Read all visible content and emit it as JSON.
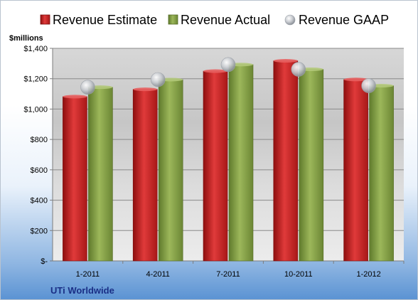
{
  "chart_data": {
    "type": "bar",
    "title": "",
    "unit_label": "$millions",
    "company": "UTi Worldwide",
    "categories": [
      "1-2011",
      "4-2011",
      "7-2011",
      "10-2011",
      "1-2012"
    ],
    "series": [
      {
        "name": "Revenue Estimate",
        "type": "bar",
        "color": "#d42a2a",
        "values": [
          1082,
          1130,
          1250,
          1318,
          1195
        ]
      },
      {
        "name": "Revenue Actual",
        "type": "bar",
        "color": "#8fa84d",
        "values": [
          1144,
          1194,
          1293,
          1262,
          1154
        ]
      },
      {
        "name": "Revenue GAAP",
        "type": "marker",
        "color": "#c8ccd2",
        "values": [
          1144,
          1194,
          1293,
          1262,
          1154
        ]
      }
    ],
    "y_ticks": [
      {
        "value": 0,
        "label": "$-"
      },
      {
        "value": 200,
        "label": "$200"
      },
      {
        "value": 400,
        "label": "$400"
      },
      {
        "value": 600,
        "label": "$600"
      },
      {
        "value": 800,
        "label": "$800"
      },
      {
        "value": 1000,
        "label": "$1,000"
      },
      {
        "value": 1200,
        "label": "$1,200"
      },
      {
        "value": 1400,
        "label": "$1,400"
      }
    ],
    "ylim": [
      0,
      1400
    ],
    "grid": true,
    "legend_position": "top"
  }
}
